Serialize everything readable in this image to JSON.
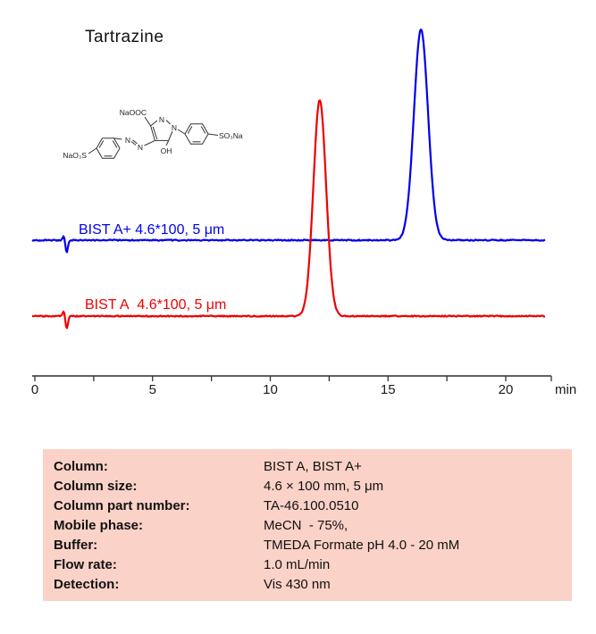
{
  "title": "Tartrazine",
  "structure_labels": {
    "carboxylate": "NaOOC",
    "ring_nitrogen_top": "N",
    "ring_nitrogen_right": "N",
    "azo_nitrogen_left": "N",
    "azo_nitrogen_right": "N",
    "hydroxyl": "OH",
    "sulfonate_left": "NaO₃S",
    "sulfonate_right": "SO₃Na"
  },
  "chart_data": {
    "type": "line",
    "title": "Tartrazine",
    "xlabel": "min",
    "ylabel": "",
    "grid": false,
    "x_axis": {
      "min": 0,
      "max": 21.9,
      "major_ticks": [
        0,
        5,
        10,
        15,
        20
      ],
      "minor_tick_step": 2.5,
      "unit": "min"
    },
    "series": [
      {
        "name": "BIST A+ 4.6*100, 5 μm",
        "color": "#0000ee",
        "injection_disturbance_min": 1.3,
        "peaks": [
          {
            "retention_time_min": 16.4,
            "height_rel": 1.0,
            "sigma_min": 0.3
          }
        ]
      },
      {
        "name": "BIST A  4.6*100, 5 μm",
        "color": "#ee0000",
        "injection_disturbance_min": 1.3,
        "peaks": [
          {
            "retention_time_min": 12.1,
            "height_rel": 1.0,
            "sigma_min": 0.27
          }
        ]
      }
    ]
  },
  "method_table": {
    "background": "#fbd2c7",
    "rows": [
      {
        "label": "Column:",
        "value": "BIST A, BIST A+"
      },
      {
        "label": "Column size:",
        "value": "4.6 × 100 mm, 5 μm"
      },
      {
        "label": "Column part number:",
        "value": "TA-46.100.0510"
      },
      {
        "label": "Mobile phase:",
        "value": "MeCN  - 75%,"
      },
      {
        "label": "Buffer:",
        "value": "TMEDA Formate pH 4.0 - 20 mM"
      },
      {
        "label": "Flow rate:",
        "value": "1.0 mL/min"
      },
      {
        "label": "Detection:",
        "value": "Vis 430 nm"
      }
    ]
  }
}
